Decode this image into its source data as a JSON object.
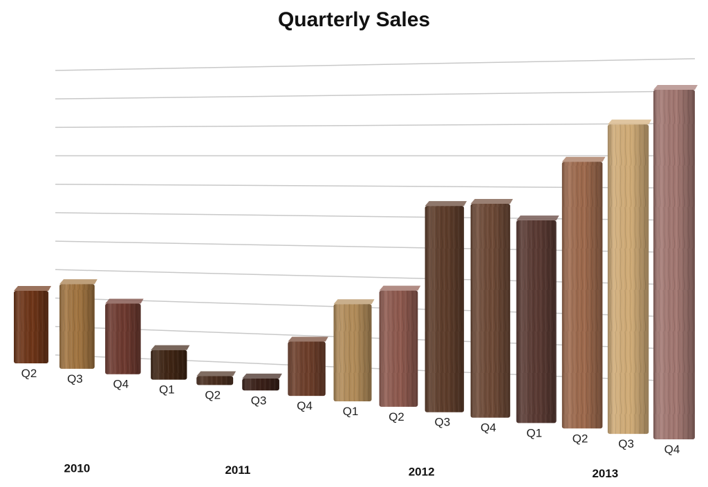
{
  "chart_data": {
    "type": "bar",
    "title": "Quarterly Sales",
    "xlabel": "",
    "ylabel": "",
    "grid": true,
    "legend": "none",
    "ylim": [
      0,
      11
    ],
    "groups": [
      {
        "label": "2010",
        "categories": [
          "Q2",
          "Q3",
          "Q4"
        ]
      },
      {
        "label": "2011",
        "categories": [
          "Q1",
          "Q2",
          "Q3",
          "Q4"
        ]
      },
      {
        "label": "2012",
        "categories": [
          "Q1",
          "Q2",
          "Q3",
          "Q4"
        ]
      },
      {
        "label": "2013",
        "categories": [
          "Q1",
          "Q2",
          "Q3",
          "Q4"
        ]
      }
    ],
    "categories": [
      "Q2",
      "Q3",
      "Q4",
      "Q1",
      "Q2",
      "Q3",
      "Q4",
      "Q1",
      "Q2",
      "Q3",
      "Q4",
      "Q1",
      "Q2",
      "Q3",
      "Q4"
    ],
    "values": [
      2.5,
      2.9,
      2.4,
      1.0,
      0.3,
      0.4,
      1.8,
      3.2,
      3.8,
      6.7,
      6.9,
      6.5,
      8.5,
      9.8,
      11.0
    ],
    "bar_colors": [
      "#6e3518",
      "#a27541",
      "#6e3a30",
      "#3f2514",
      "#4a2e1f",
      "#3a2018",
      "#6e3f2b",
      "#b38d5a",
      "#8f5a4f",
      "#5e3d2b",
      "#6e4a37",
      "#5a3a33",
      "#9e6a4d",
      "#d2ad78",
      "#a37872"
    ]
  }
}
